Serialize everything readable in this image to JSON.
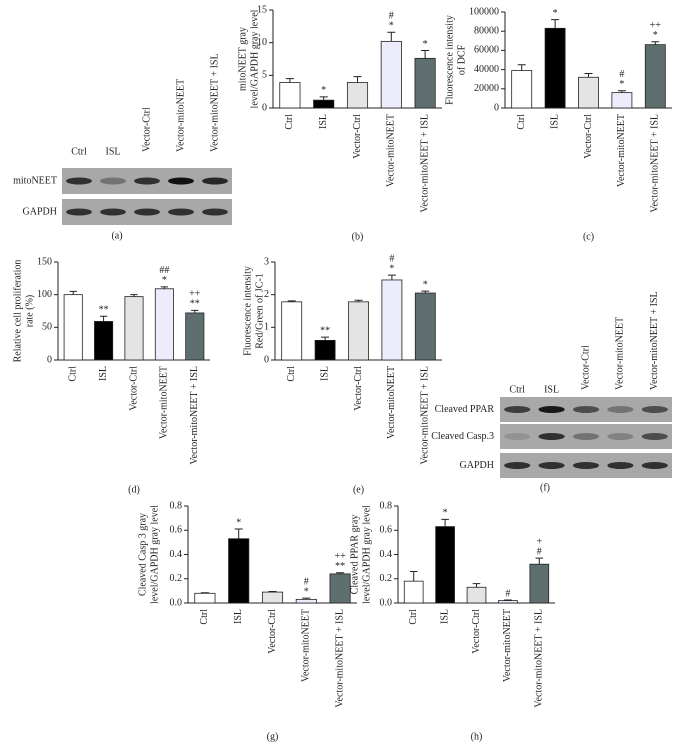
{
  "blots": [
    {
      "panel_label": "(a)",
      "lanes": [
        "Ctrl",
        "ISL",
        "Vector-Ctrl",
        "Vector-mitoNEET",
        "Vector-mitoNEET + ISL"
      ],
      "rows": [
        "mitoNEET",
        "GAPDH"
      ]
    },
    {
      "panel_label": "(f)",
      "lanes": [
        "Ctrl",
        "ISL",
        "Vector-Ctrl",
        "Vector-mitoNEET",
        "Vector-mitoNEET + ISL"
      ],
      "rows": [
        "Cleaved PPAR",
        "Cleaved Casp.3",
        "GAPDH"
      ]
    }
  ],
  "chart_data": [
    {
      "type": "bar",
      "panel_label": "(b)",
      "ylabel": [
        "mitoNEET gray",
        "level/GAPDH gray level"
      ],
      "categories": [
        "Ctrl",
        "ISL",
        "Vector-Ctrl",
        "Vector-mitoNEET",
        "Vector-mitoNEET + ISL"
      ],
      "values": [
        3.9,
        1.2,
        3.9,
        10.2,
        7.6
      ],
      "errors": [
        0.6,
        0.5,
        0.9,
        1.4,
        1.2
      ],
      "colors": [
        "#ffffff",
        "#000000",
        "#e4e4e4",
        "#ececfa",
        "#5f6e6e"
      ],
      "ylim": [
        0,
        15
      ],
      "yticks": [
        0,
        5,
        10,
        15
      ],
      "annotations": [
        {
          "category": "ISL",
          "lines": [
            "*"
          ]
        },
        {
          "category": "Vector-mitoNEET",
          "lines": [
            "#",
            "*"
          ]
        },
        {
          "category": "Vector-mitoNEET + ISL",
          "lines": [
            "*"
          ]
        }
      ]
    },
    {
      "type": "bar",
      "panel_label": "(c)",
      "ylabel": [
        "Fluorescence intensity",
        "of DCF"
      ],
      "categories": [
        "Ctrl",
        "ISL",
        "Vector-Ctrl",
        "Vector-mitoNEET",
        "Vector-mitoNEET + ISL"
      ],
      "values": [
        39000,
        83000,
        32000,
        16000,
        66000
      ],
      "errors": [
        6000,
        9000,
        4000,
        2000,
        3000
      ],
      "colors": [
        "#ffffff",
        "#000000",
        "#e4e4e4",
        "#ececfa",
        "#5f6e6e"
      ],
      "ylim": [
        0,
        100000
      ],
      "yticks": [
        0,
        20000,
        40000,
        60000,
        80000,
        100000
      ],
      "annotations": [
        {
          "category": "ISL",
          "lines": [
            "*"
          ]
        },
        {
          "category": "Vector-mitoNEET",
          "lines": [
            "#",
            "*"
          ]
        },
        {
          "category": "Vector-mitoNEET + ISL",
          "lines": [
            "++",
            "*"
          ]
        }
      ]
    },
    {
      "type": "bar",
      "panel_label": "(d)",
      "ylabel": [
        "Relative cell proliferation",
        "rate (%)"
      ],
      "categories": [
        "Ctrl",
        "ISL",
        "Vector-Ctrl",
        "Vector-mitoNEET",
        "Vector-mitoNEET + ISL"
      ],
      "values": [
        100,
        59,
        97,
        109,
        72
      ],
      "errors": [
        5,
        8,
        3,
        3,
        4
      ],
      "colors": [
        "#ffffff",
        "#000000",
        "#e4e4e4",
        "#ececfa",
        "#5f6e6e"
      ],
      "ylim": [
        0,
        150
      ],
      "yticks": [
        0,
        50,
        100,
        150
      ],
      "annotations": [
        {
          "category": "ISL",
          "lines": [
            "**"
          ]
        },
        {
          "category": "Vector-mitoNEET",
          "lines": [
            "##",
            "*"
          ]
        },
        {
          "category": "Vector-mitoNEET + ISL",
          "lines": [
            "++",
            "**"
          ]
        }
      ]
    },
    {
      "type": "bar",
      "panel_label": "(e)",
      "ylabel": [
        "Fluorescence intensity",
        "Red/Green of JC-1"
      ],
      "categories": [
        "Ctrl",
        "ISL",
        "Vector-Ctrl",
        "Vector-mitoNEET",
        "Vector-mitoNEET + ISL"
      ],
      "values": [
        1.78,
        0.6,
        1.78,
        2.45,
        2.05
      ],
      "errors": [
        0.03,
        0.1,
        0.05,
        0.15,
        0.06
      ],
      "colors": [
        "#ffffff",
        "#000000",
        "#e4e4e4",
        "#ececfa",
        "#5f6e6e"
      ],
      "ylim": [
        0,
        3
      ],
      "yticks": [
        0,
        1,
        2,
        3
      ],
      "annotations": [
        {
          "category": "ISL",
          "lines": [
            "**"
          ]
        },
        {
          "category": "Vector-mitoNEET",
          "lines": [
            "#",
            "*"
          ]
        },
        {
          "category": "Vector-mitoNEET + ISL",
          "lines": [
            "*"
          ]
        }
      ]
    },
    {
      "type": "bar",
      "panel_label": "(g)",
      "ylabel": [
        "Cleaved Casp 3 gray",
        "level/GAPDH gray level"
      ],
      "categories": [
        "Ctrl",
        "ISL",
        "Vector-Ctrl",
        "Vector-mitoNEET",
        "Vector-mitoNEET + ISL"
      ],
      "values": [
        0.08,
        0.53,
        0.09,
        0.03,
        0.24
      ],
      "errors": [
        0.005,
        0.08,
        0.005,
        0.01,
        0.01
      ],
      "colors": [
        "#ffffff",
        "#000000",
        "#e4e4e4",
        "#ececfa",
        "#5f6e6e"
      ],
      "ylim": [
        0,
        0.8
      ],
      "yticks": [
        {
          "value": 0,
          "label": "0.0"
        },
        0.2,
        0.4,
        0.6,
        0.8
      ],
      "annotations": [
        {
          "category": "ISL",
          "lines": [
            "*"
          ]
        },
        {
          "category": "Vector-mitoNEET",
          "lines": [
            "#",
            "*"
          ]
        },
        {
          "category": "Vector-mitoNEET + ISL",
          "lines": [
            "++",
            "**"
          ]
        }
      ]
    },
    {
      "type": "bar",
      "panel_label": "(h)",
      "ylabel": [
        "Cleaved PPAR gray",
        "level/GAPDH gray level"
      ],
      "categories": [
        "Ctrl",
        "ISL",
        "Vector-Ctrl",
        "Vector-mitoNEET",
        "Vector-mitoNEET + ISL"
      ],
      "values": [
        0.18,
        0.63,
        0.13,
        0.02,
        0.32
      ],
      "errors": [
        0.08,
        0.06,
        0.03,
        0.005,
        0.05
      ],
      "colors": [
        "#ffffff",
        "#000000",
        "#e4e4e4",
        "#ececfa",
        "#5f6e6e"
      ],
      "ylim": [
        0,
        0.8
      ],
      "yticks": [
        {
          "value": 0,
          "label": "0.0"
        },
        0.2,
        0.4,
        0.6,
        0.8
      ],
      "annotations": [
        {
          "category": "ISL",
          "lines": [
            "*"
          ]
        },
        {
          "category": "Vector-mitoNEET",
          "lines": [
            "#"
          ]
        },
        {
          "category": "Vector-mitoNEET + ISL",
          "lines": [
            "+",
            "#"
          ]
        }
      ]
    }
  ]
}
